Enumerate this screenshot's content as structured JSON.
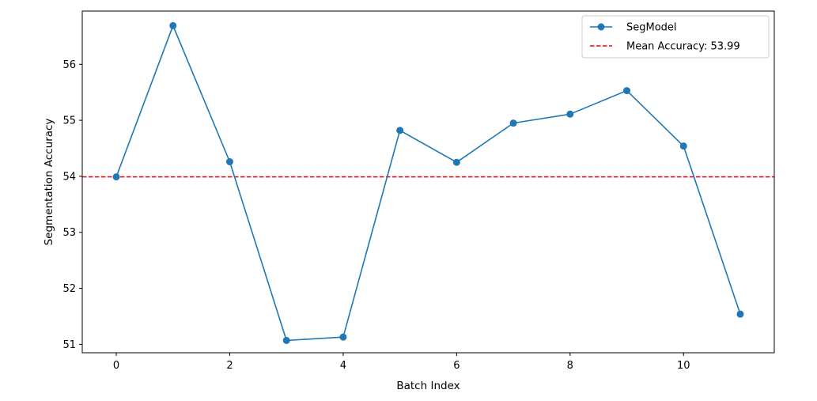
{
  "chart_data": {
    "type": "line",
    "title": "",
    "xlabel": "Batch Index",
    "ylabel": "Segmentation Accuracy",
    "x": [
      0,
      1,
      2,
      3,
      4,
      5,
      6,
      7,
      8,
      9,
      10,
      11
    ],
    "series": [
      {
        "name": "SegModel",
        "color": "#1f77b4",
        "marker": "circle",
        "values": [
          53.99,
          56.69,
          54.26,
          51.07,
          51.13,
          54.82,
          54.25,
          54.95,
          55.11,
          55.53,
          54.54,
          51.54
        ]
      }
    ],
    "reference_lines": [
      {
        "name": "Mean Accuracy: 53.99",
        "value": 53.99,
        "color": "#ff0000",
        "style": "dashed"
      }
    ],
    "xticks": [
      0,
      2,
      4,
      6,
      8,
      10
    ],
    "yticks": [
      51,
      52,
      53,
      54,
      55,
      56
    ],
    "xlim": [
      -0.6,
      11.6
    ],
    "ylim": [
      50.85,
      56.95
    ],
    "grid": false,
    "legend_position": "top-right"
  }
}
